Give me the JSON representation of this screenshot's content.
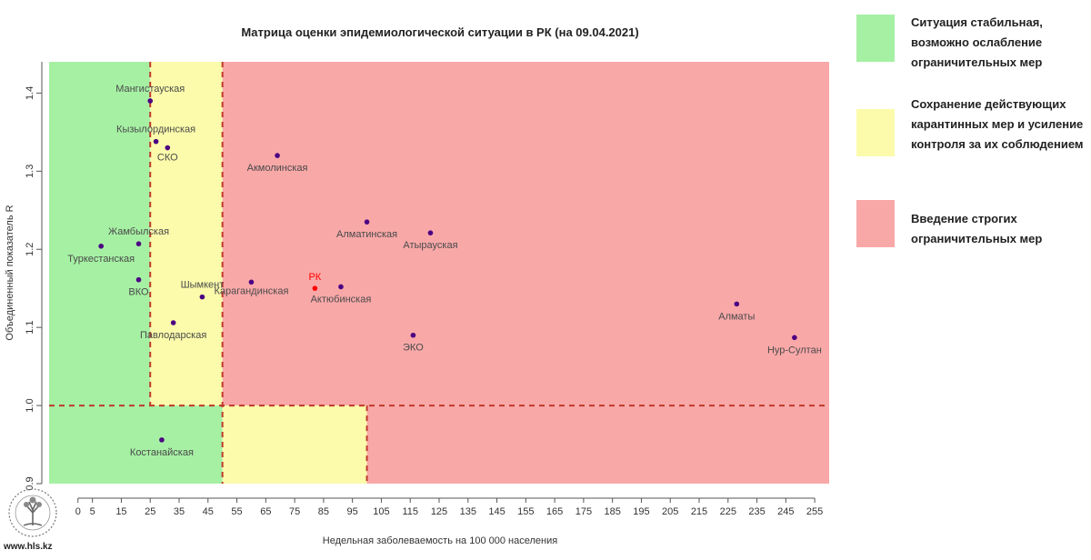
{
  "chart_data": {
    "type": "scatter",
    "title": "Матрица оценки эпидемиологической ситуации в РК (на 09.04.2021)",
    "xlabel": "Недельная заболеваемость на 100 000 населения",
    "ylabel": "Объединенный показатель R",
    "xlim": [
      -10,
      260
    ],
    "ylim": [
      0.9,
      1.44
    ],
    "x_ticks": [
      0,
      5,
      15,
      25,
      35,
      45,
      55,
      65,
      75,
      85,
      95,
      105,
      115,
      125,
      135,
      145,
      155,
      165,
      175,
      185,
      195,
      205,
      215,
      225,
      235,
      245,
      255
    ],
    "y_ticks": [
      0.9,
      1.0,
      1.1,
      1.2,
      1.3,
      1.4
    ],
    "thresholds": {
      "x1": 25,
      "x2": 50,
      "x3": 100,
      "y": 1.0
    },
    "colors": {
      "green": "#a6f0a4",
      "yellow": "#fbfbab",
      "red": "#f9a8a8",
      "point": "#4b0082",
      "rk_point": "#ff0000",
      "threshold_line": "#c0392b"
    },
    "points": [
      {
        "label": "Мангистауская",
        "x": 25,
        "y": 1.39
      },
      {
        "label": "Кызылординская",
        "x": 27,
        "y": 1.338
      },
      {
        "label": "СКО",
        "x": 31,
        "y": 1.33
      },
      {
        "label": "Акмолинская",
        "x": 69,
        "y": 1.32
      },
      {
        "label": "Алматинская",
        "x": 100,
        "y": 1.235
      },
      {
        "label": "Атырауская",
        "x": 122,
        "y": 1.221
      },
      {
        "label": "Жамбылская",
        "x": 21,
        "y": 1.207
      },
      {
        "label": "Туркестанская",
        "x": 8,
        "y": 1.204
      },
      {
        "label": "ВКО",
        "x": 21,
        "y": 1.161
      },
      {
        "label": "Шымкент",
        "x": 43,
        "y": 1.139
      },
      {
        "label": "Карагандинская",
        "x": 60,
        "y": 1.158
      },
      {
        "label": "РК",
        "x": 82,
        "y": 1.15,
        "highlight": true
      },
      {
        "label": "Актюбинская",
        "x": 91,
        "y": 1.152
      },
      {
        "label": "Павлодарская",
        "x": 33,
        "y": 1.106
      },
      {
        "label": "ЭКО",
        "x": 116,
        "y": 1.09
      },
      {
        "label": "Алматы",
        "x": 228,
        "y": 1.13
      },
      {
        "label": "Нур-Султан",
        "x": 248,
        "y": 1.087
      },
      {
        "label": "Костанайская",
        "x": 29,
        "y": 0.956
      }
    ]
  },
  "legend": [
    {
      "color": "#a6f0a4",
      "text": "Ситуация стабильная, возможно ослабление ограничительных мер"
    },
    {
      "color": "#fbfbab",
      "text": "Сохранение действующих карантинных мер и усиление контроля за их соблюдением"
    },
    {
      "color": "#f9a8a8",
      "text": "Введение строгих ограничительных мер"
    }
  ],
  "footer": {
    "url": "www.hls.kz"
  }
}
